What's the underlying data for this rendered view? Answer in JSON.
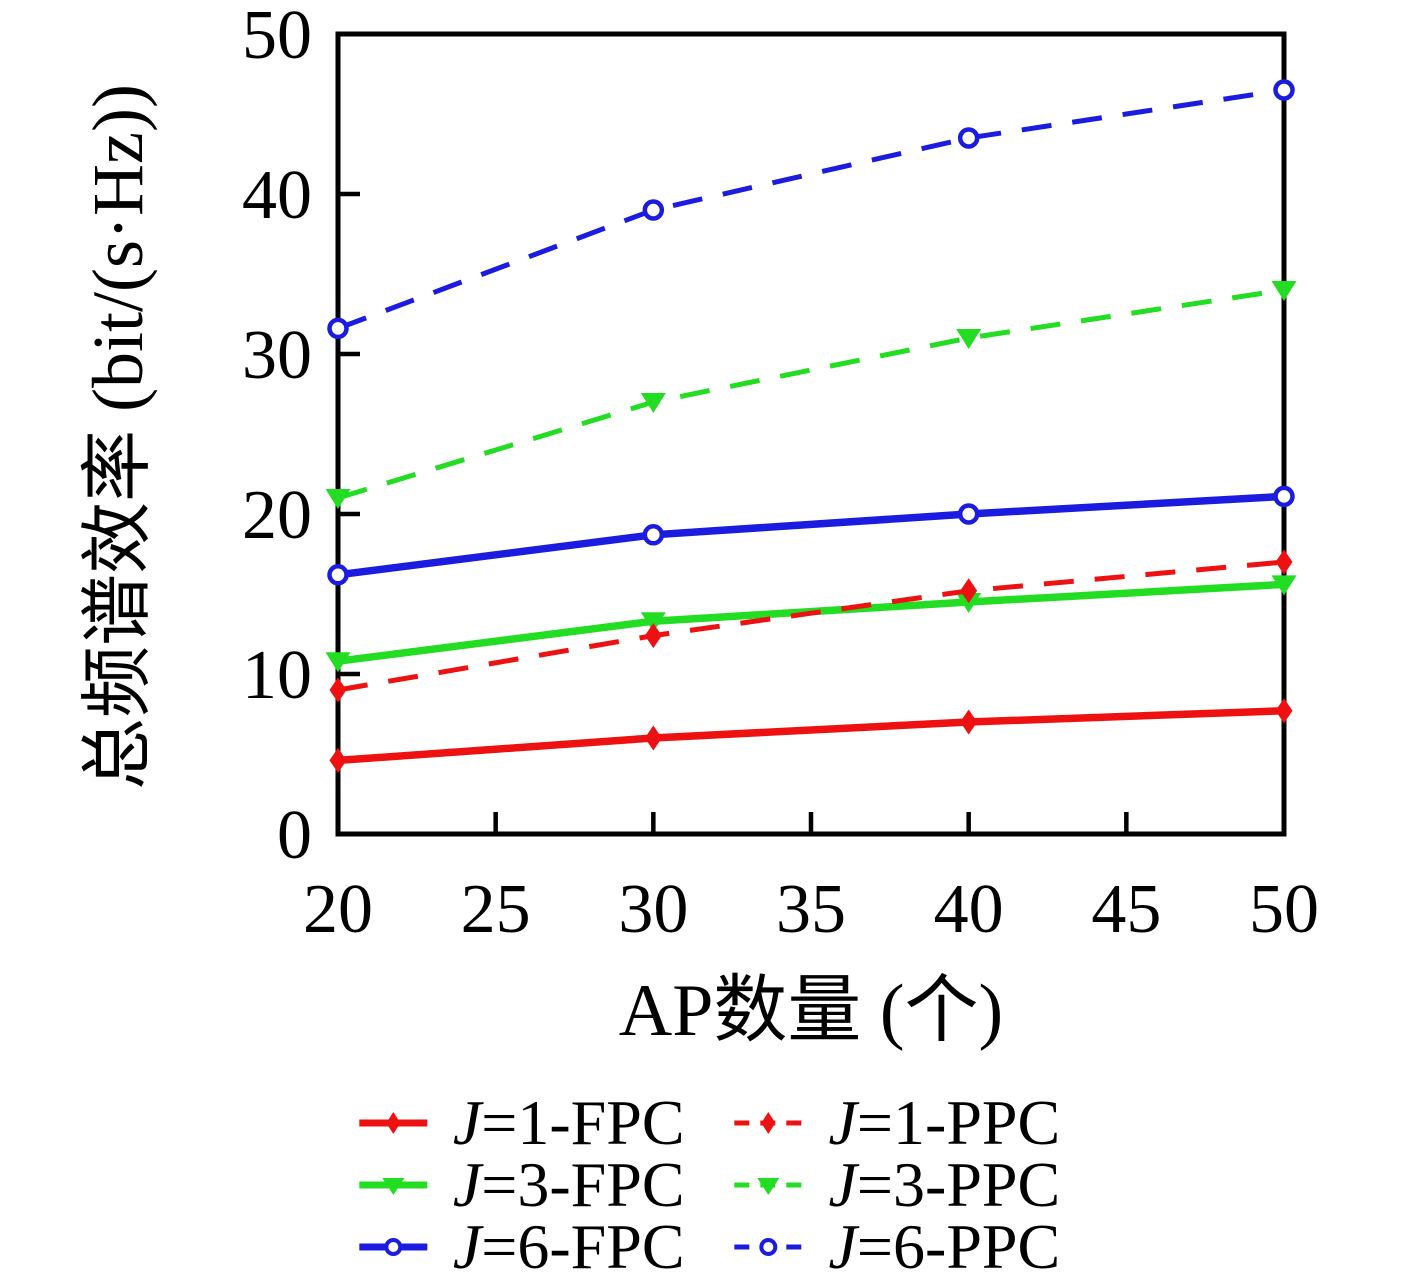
{
  "chart_data": {
    "type": "line",
    "x": [
      20,
      30,
      40,
      50
    ],
    "series": [
      {
        "name": "J=1-FPC",
        "label_j": "J",
        "label_rest": "=1-FPC",
        "color": "#ee1111",
        "style": "solid",
        "marker": "diamond",
        "values": [
          4.6,
          6.0,
          7.0,
          7.7
        ]
      },
      {
        "name": "J=3-FPC",
        "label_j": "J",
        "label_rest": "=3-FPC",
        "color": "#22dd22",
        "style": "solid",
        "marker": "triangle-down",
        "values": [
          10.8,
          13.3,
          14.5,
          15.6
        ]
      },
      {
        "name": "J=6-FPC",
        "label_j": "J",
        "label_rest": "=6-FPC",
        "color": "#1c1ce0",
        "style": "solid",
        "marker": "circle",
        "values": [
          16.2,
          18.7,
          20.0,
          21.1
        ]
      },
      {
        "name": "J=1-PPC",
        "label_j": "J",
        "label_rest": "=1-PPC",
        "color": "#ee1111",
        "style": "dashed",
        "marker": "diamond",
        "values": [
          9.0,
          12.4,
          15.2,
          17.0
        ]
      },
      {
        "name": "J=3-PPC",
        "label_j": "J",
        "label_rest": "=3-PPC",
        "color": "#22dd22",
        "style": "dashed",
        "marker": "triangle-down",
        "values": [
          21.0,
          27.0,
          31.0,
          34.0
        ]
      },
      {
        "name": "J=6-PPC",
        "label_j": "J",
        "label_rest": "=6-PPC",
        "color": "#1c1ce0",
        "style": "dashed",
        "marker": "circle-open",
        "values": [
          31.6,
          39.0,
          43.5,
          46.5
        ]
      }
    ],
    "title": "",
    "xlabel": "AP数量 (个)",
    "ylabel": "总频谱效率 (bit/(s·Hz))",
    "xlim": [
      20,
      50
    ],
    "ylim": [
      0,
      50
    ],
    "xticks": [
      20,
      25,
      30,
      35,
      40,
      45,
      50
    ],
    "yticks": [
      0,
      10,
      20,
      30,
      40,
      50
    ],
    "grid": false,
    "legend_position": "bottom-center",
    "legend_order": [
      "J=1-FPC",
      "J=1-PPC",
      "J=3-FPC",
      "J=3-PPC",
      "J=6-FPC",
      "J=6-PPC"
    ]
  },
  "colors": {
    "axis": "#000000",
    "background": "#ffffff",
    "red": "#ee1111",
    "green": "#22dd22",
    "blue": "#1c1ce0"
  }
}
